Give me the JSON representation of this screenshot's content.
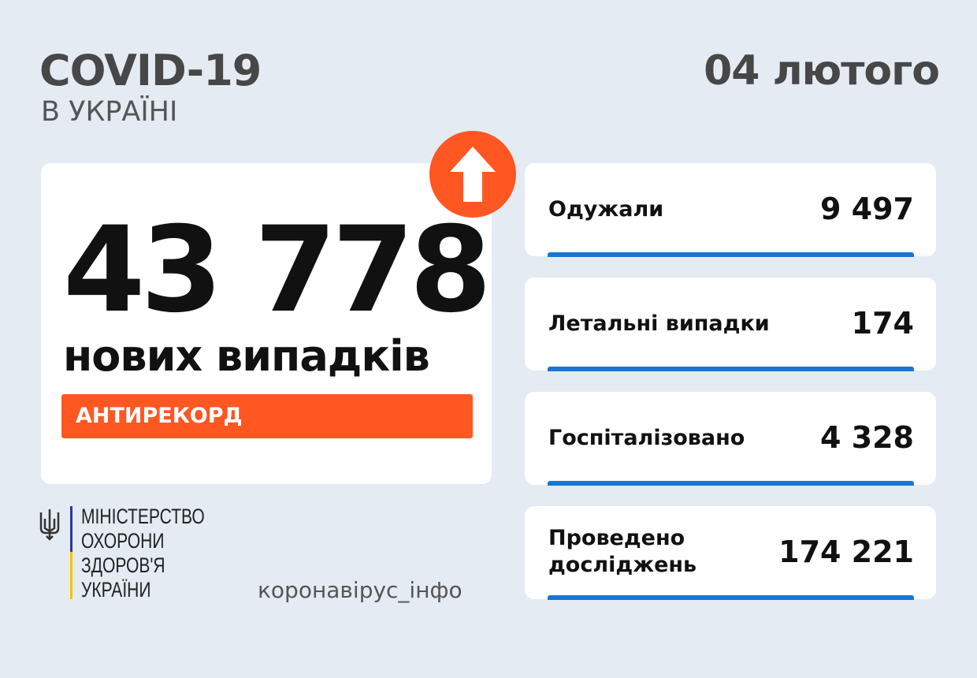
{
  "header": {
    "title": "COVID-19",
    "subtitle": "В УКРАЇНІ",
    "date": "04 лютого"
  },
  "main": {
    "new_cases": "43 778",
    "new_cases_label": "нових випадків",
    "badge": "АНТИРЕКОРД",
    "trend_icon": "arrow-up-icon",
    "accent": "#ff5722"
  },
  "stats": [
    {
      "label": "Одужали",
      "value": "9 497"
    },
    {
      "label": "Летальні випадки",
      "value": "174"
    },
    {
      "label": "Госпіталізовано",
      "value": "4 328"
    },
    {
      "label": "Проведено досліджень",
      "value": "174 221"
    }
  ],
  "footer": {
    "ministry_lines": [
      "МІНІСТЕРСТВО",
      "ОХОРОНИ",
      "ЗДОРОВ'Я",
      "УКРАЇНИ"
    ],
    "site": "коронавірус_інфо"
  },
  "colors": {
    "background": "#e4ebf2",
    "bar": "#1976d2",
    "flag_blue": "#2a3a9a",
    "flag_yellow": "#f5c400"
  }
}
